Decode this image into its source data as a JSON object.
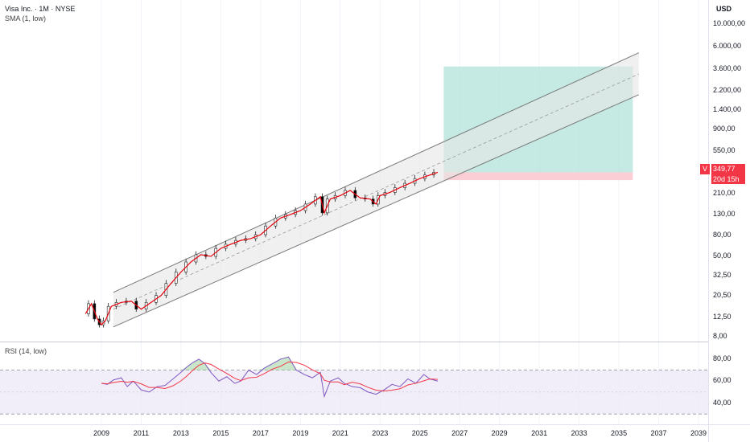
{
  "header": {
    "symbol_line": "Visa Inc. · 1M · NYSE",
    "indicator": "SMA (1, low)"
  },
  "rsi": {
    "label": "RSI (14, low)",
    "ticks": [
      "80,00",
      "60,00",
      "40,00"
    ],
    "upper_band": 70,
    "lower_band": 30
  },
  "price_axis": {
    "currency": "USD",
    "ticks": [
      "10.000,00",
      "6.000,00",
      "3.600,00",
      "2.200,00",
      "1.400,00",
      "900,00",
      "550,00",
      "340,00",
      "210,00",
      "130,00",
      "80,00",
      "50,00",
      "32,50",
      "20,50",
      "12,50",
      "8,00"
    ],
    "scale": "log"
  },
  "last_price": {
    "value": "349,77",
    "countdown": "20d 15h",
    "tag": "V",
    "color": "#f23645"
  },
  "time_axis": {
    "ticks": [
      "2009",
      "2011",
      "2013",
      "2015",
      "2017",
      "2019",
      "2021",
      "2023",
      "2025",
      "2027",
      "2029",
      "2031",
      "2033",
      "2035",
      "2037",
      "2039"
    ]
  },
  "colors": {
    "candle_up": "#ffffff",
    "candle_down": "#000000",
    "sma": "#e8000b",
    "channel_fill": "#e6e6e6",
    "channel_line": "#7a7a7a",
    "target_zone": "#b2e3da",
    "stop_zone": "#f9c9cf",
    "rsi_line": "#7e57c2",
    "rsi_ma": "#f23645",
    "rsi_band_fill": "#ede7f6"
  },
  "chart_data": {
    "type": "line",
    "scale": "log",
    "x_unit": "year",
    "series": [
      {
        "name": "SMA (1, low)",
        "x": [
          2008.2,
          2008.5,
          2008.8,
          2009.0,
          2009.2,
          2009.5,
          2010.0,
          2010.5,
          2011.0,
          2011.5,
          2012.0,
          2012.5,
          2013.0,
          2013.5,
          2014.0,
          2014.5,
          2015.0,
          2015.5,
          2016.0,
          2016.5,
          2017.0,
          2017.5,
          2018.0,
          2018.5,
          2019.0,
          2019.5,
          2020.0,
          2020.2,
          2020.5,
          2021.0,
          2021.5,
          2022.0,
          2022.5,
          2022.8,
          2023.0,
          2023.5,
          2024.0,
          2024.5,
          2025.0,
          2025.5,
          2025.9
        ],
        "y": [
          13.5,
          17,
          12,
          10.5,
          11.5,
          16,
          17.5,
          18,
          15,
          17.5,
          20.5,
          27,
          35,
          44,
          52,
          50,
          60,
          66,
          72,
          75,
          82,
          100,
          120,
          130,
          142,
          165,
          195,
          135,
          185,
          200,
          225,
          190,
          185,
          165,
          200,
          215,
          240,
          265,
          295,
          320,
          340
        ]
      }
    ],
    "channel": {
      "start_year": 2009.6,
      "end_year": 2036,
      "upper": [
        22,
        5200
      ],
      "middle": [
        15,
        3200
      ],
      "lower": [
        10,
        2000
      ]
    },
    "target_zone": {
      "x_start": 2026.2,
      "x_end": 2035.7,
      "y_low": 340,
      "y_high": 3800
    },
    "stop_zone": {
      "x_start": 2026.2,
      "x_end": 2035.7,
      "y_low": 285,
      "y_high": 340
    },
    "rsi": {
      "x": [
        2009.0,
        2009.3,
        2009.6,
        2010.0,
        2010.3,
        2010.6,
        2011.0,
        2011.4,
        2011.8,
        2012.2,
        2012.6,
        2013.0,
        2013.3,
        2013.6,
        2013.9,
        2014.2,
        2014.5,
        2014.9,
        2015.3,
        2015.7,
        2016.0,
        2016.4,
        2016.8,
        2017.2,
        2017.6,
        2018.0,
        2018.4,
        2018.8,
        2019.2,
        2019.6,
        2020.0,
        2020.2,
        2020.5,
        2020.9,
        2021.2,
        2021.6,
        2022.0,
        2022.4,
        2022.8,
        2023.2,
        2023.6,
        2024.0,
        2024.4,
        2024.8,
        2025.2,
        2025.5,
        2025.9
      ],
      "y": [
        58,
        57,
        61,
        63,
        55,
        60,
        52,
        50,
        55,
        56,
        62,
        68,
        73,
        77,
        80,
        76,
        68,
        60,
        64,
        58,
        60,
        70,
        66,
        72,
        76,
        80,
        82,
        70,
        66,
        63,
        68,
        46,
        60,
        63,
        58,
        55,
        54,
        50,
        48,
        52,
        57,
        55,
        62,
        58,
        66,
        62,
        60
      ],
      "ylim": [
        25,
        88
      ]
    }
  }
}
